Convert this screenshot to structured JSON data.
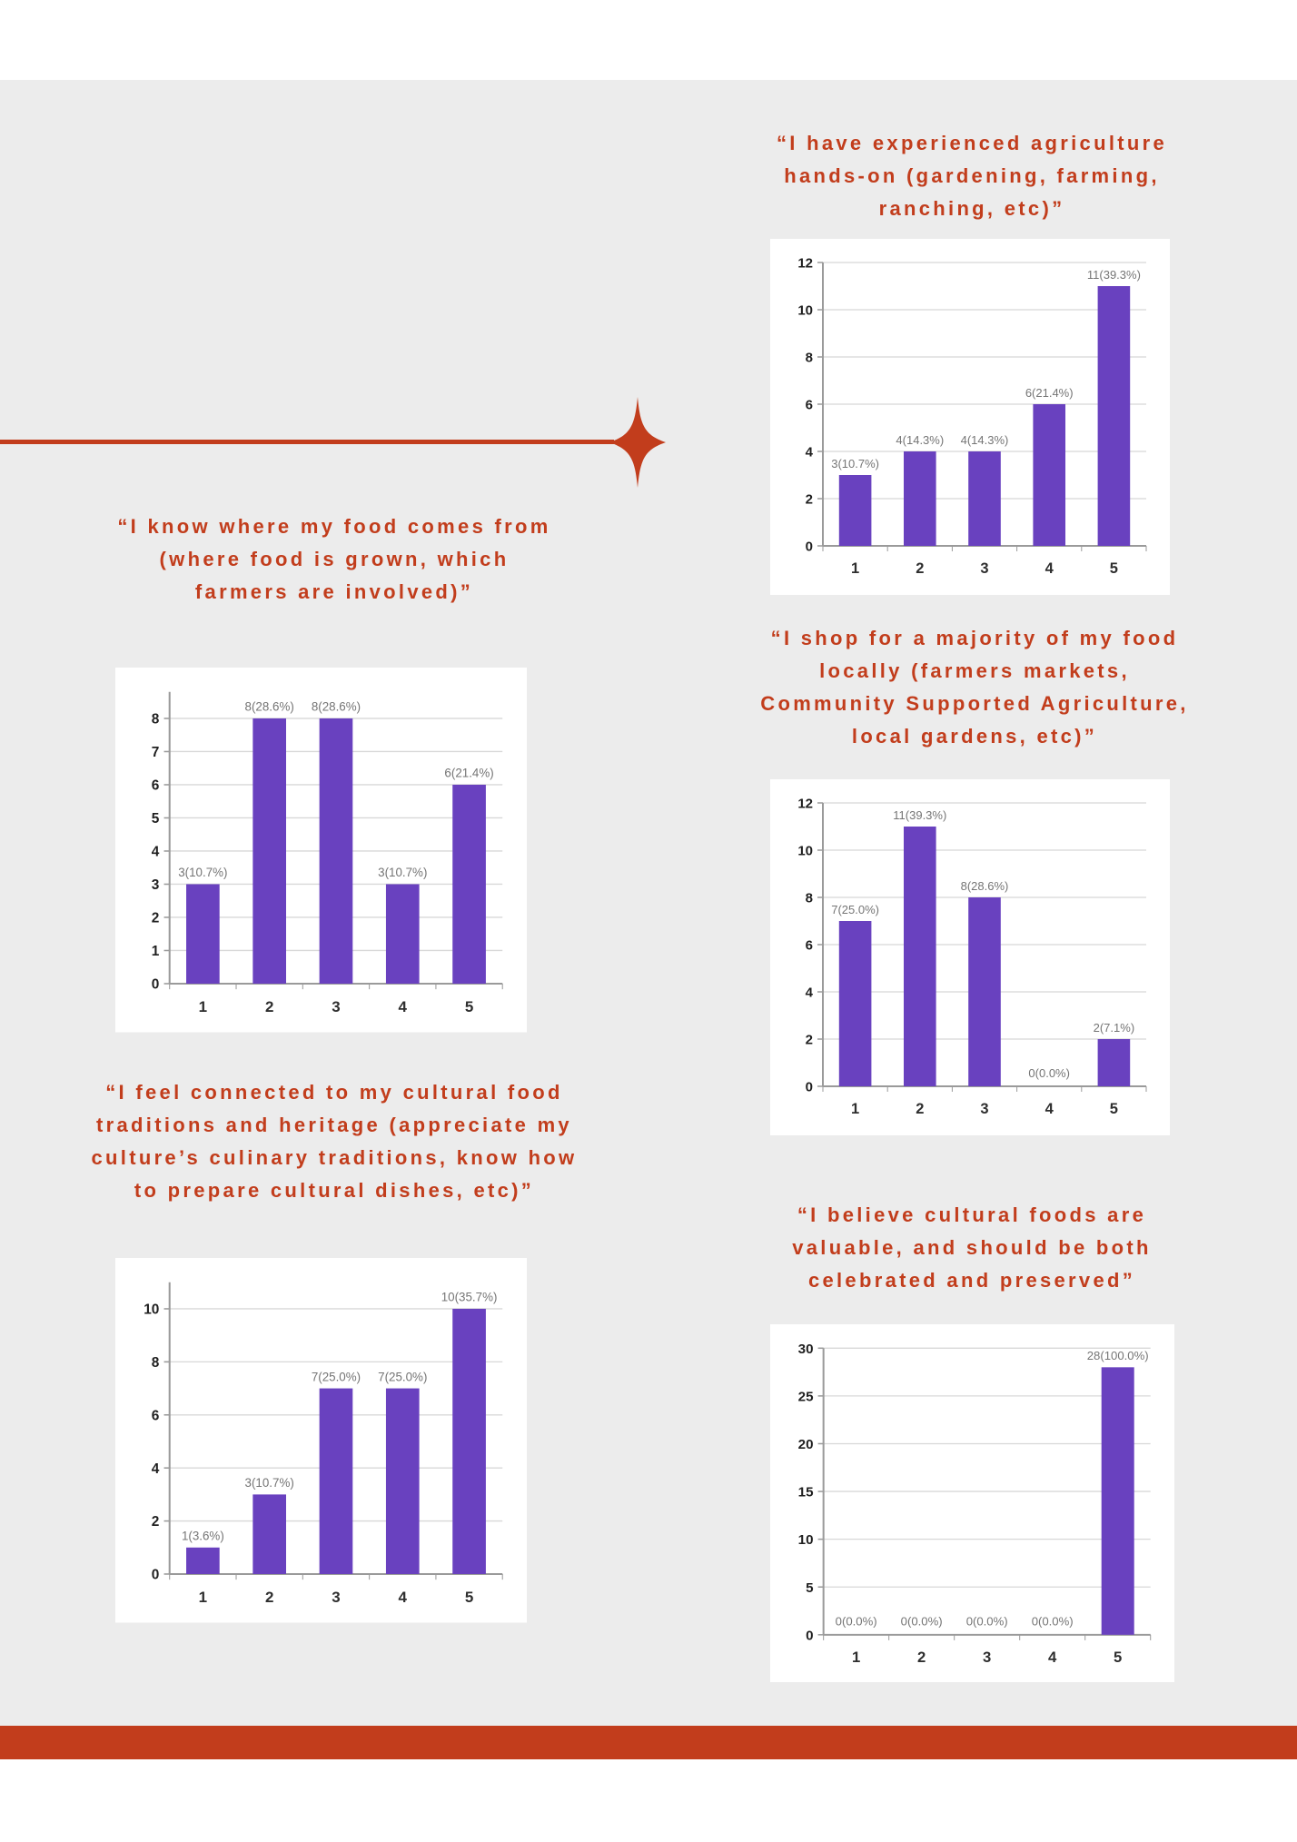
{
  "page": {
    "background": "#ffffff",
    "panel_bg": "#ececec",
    "accent": "#c23d1c",
    "has_footer_band": true
  },
  "theme": {
    "bar": "#6941bf",
    "grid": "#d8d8d8",
    "axis": "#9a9a9a",
    "card_bg": "#ffffff",
    "ytick_color": "#1f1f1f",
    "xtick_color": "#2e2e2e",
    "value_color": "#757575",
    "heading_color": "#c23d1c"
  },
  "ornament": {
    "name": "sparkle-divider",
    "color": "#c23d1c"
  },
  "chart_data": [
    {
      "type": "bar",
      "title": "“I have experienced agriculture\nhands-on (gardening, farming,\nranching, etc)”",
      "categories": [
        "1",
        "2",
        "3",
        "4",
        "5"
      ],
      "values": [
        3,
        4,
        4,
        6,
        11
      ],
      "value_labels": [
        "3(10.7%)",
        "4(14.3%)",
        "4(14.3%)",
        "6(21.4%)",
        "11(39.3%)"
      ],
      "ylim": [
        0,
        12
      ],
      "ytick_step": 2,
      "headroom": 0,
      "grid": true,
      "legend": "none"
    },
    {
      "type": "bar",
      "title": "“I know where my food comes from\n(where food is grown, which\nfarmers are involved)”",
      "categories": [
        "1",
        "2",
        "3",
        "4",
        "5"
      ],
      "values": [
        3,
        8,
        8,
        3,
        6
      ],
      "value_labels": [
        "3(10.7%)",
        "8(28.6%)",
        "8(28.6%)",
        "3(10.7%)",
        "6(21.4%)"
      ],
      "ylim": [
        0,
        8
      ],
      "ytick_step": 1,
      "headroom": 0.8,
      "grid": true,
      "legend": "none"
    },
    {
      "type": "bar",
      "title": "“I shop for a majority of my food\nlocally (farmers markets,\nCommunity Supported Agriculture,\nlocal gardens, etc)”",
      "categories": [
        "1",
        "2",
        "3",
        "4",
        "5"
      ],
      "values": [
        7,
        11,
        8,
        0,
        2
      ],
      "value_labels": [
        "7(25.0%)",
        "11(39.3%)",
        "8(28.6%)",
        "0(0.0%)",
        "2(7.1%)"
      ],
      "ylim": [
        0,
        12
      ],
      "ytick_step": 2,
      "headroom": 0,
      "grid": true,
      "legend": "none"
    },
    {
      "type": "bar",
      "title": "“I feel connected to my cultural food\ntraditions and heritage (appreciate my\nculture’s culinary traditions, know how\nto prepare cultural dishes, etc)”",
      "categories": [
        "1",
        "2",
        "3",
        "4",
        "5"
      ],
      "values": [
        1,
        3,
        7,
        7,
        10
      ],
      "value_labels": [
        "1(3.6%)",
        "3(10.7%)",
        "7(25.0%)",
        "7(25.0%)",
        "10(35.7%)"
      ],
      "ylim": [
        0,
        10
      ],
      "ytick_step": 2,
      "headroom": 1.0,
      "grid": true,
      "legend": "none"
    },
    {
      "type": "bar",
      "title": "“I believe cultural foods are\nvaluable, and should be both\ncelebrated and preserved”",
      "categories": [
        "1",
        "2",
        "3",
        "4",
        "5"
      ],
      "values": [
        0,
        0,
        0,
        0,
        28
      ],
      "value_labels": [
        "0(0.0%)",
        "0(0.0%)",
        "0(0.0%)",
        "0(0.0%)",
        "28(100.0%)"
      ],
      "ylim": [
        0,
        30
      ],
      "ytick_step": 5,
      "headroom": 0,
      "grid": true,
      "legend": "none"
    }
  ]
}
